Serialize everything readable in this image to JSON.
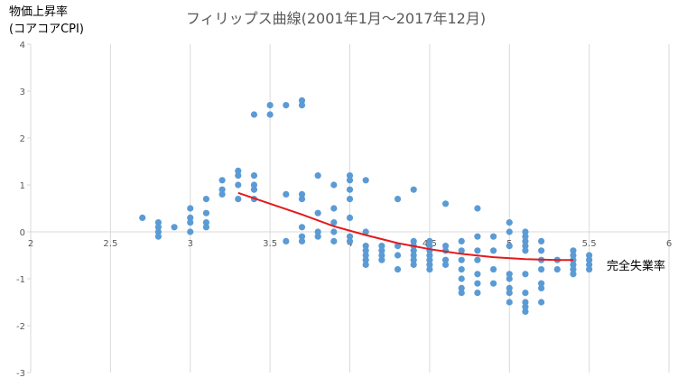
{
  "chart_data": {
    "type": "scatter",
    "title": "フィリップス曲線(2001年1月～2017年12月)",
    "xlabel": "完全失業率",
    "ylabel_line1": "物価上昇率",
    "ylabel_line2": "(コアコアCPI)",
    "xlim": [
      2,
      6
    ],
    "ylim": [
      -3,
      4
    ],
    "x_ticks": [
      "2",
      "2.5",
      "3",
      "3.5",
      "4",
      "4.5",
      "5",
      "5.5",
      "6"
    ],
    "y_ticks": [
      "4",
      "3",
      "2",
      "1",
      "0",
      "-1",
      "-2",
      "-3"
    ],
    "grid": "vertical",
    "legend": "none",
    "colors": {
      "points": "#5b9bd5",
      "trend": "#e31a1c",
      "grid": "#d9d9d9",
      "text": "#595959"
    },
    "points": [
      [
        2.7,
        0.3
      ],
      [
        2.8,
        0.2
      ],
      [
        2.8,
        0.1
      ],
      [
        2.8,
        0.0
      ],
      [
        2.8,
        -0.1
      ],
      [
        2.9,
        0.1
      ],
      [
        3.0,
        0.5
      ],
      [
        3.0,
        0.3
      ],
      [
        3.0,
        0.2
      ],
      [
        3.0,
        0.0
      ],
      [
        3.1,
        0.7
      ],
      [
        3.1,
        0.4
      ],
      [
        3.1,
        0.2
      ],
      [
        3.1,
        0.1
      ],
      [
        3.2,
        1.1
      ],
      [
        3.2,
        0.9
      ],
      [
        3.2,
        0.8
      ],
      [
        3.3,
        1.3
      ],
      [
        3.3,
        1.2
      ],
      [
        3.3,
        1.0
      ],
      [
        3.3,
        0.7
      ],
      [
        3.4,
        2.5
      ],
      [
        3.4,
        1.2
      ],
      [
        3.4,
        1.0
      ],
      [
        3.4,
        0.9
      ],
      [
        3.4,
        0.7
      ],
      [
        3.5,
        2.7
      ],
      [
        3.5,
        2.5
      ],
      [
        3.6,
        2.7
      ],
      [
        3.6,
        0.8
      ],
      [
        3.6,
        -0.2
      ],
      [
        3.7,
        2.8
      ],
      [
        3.7,
        2.7
      ],
      [
        3.7,
        0.8
      ],
      [
        3.7,
        0.7
      ],
      [
        3.7,
        0.1
      ],
      [
        3.7,
        -0.1
      ],
      [
        3.7,
        -0.2
      ],
      [
        3.8,
        1.2
      ],
      [
        3.8,
        0.4
      ],
      [
        3.8,
        0.0
      ],
      [
        3.8,
        -0.1
      ],
      [
        3.9,
        1.0
      ],
      [
        3.9,
        0.5
      ],
      [
        3.9,
        0.2
      ],
      [
        3.9,
        0.0
      ],
      [
        3.9,
        -0.2
      ],
      [
        4.0,
        1.2
      ],
      [
        4.0,
        1.1
      ],
      [
        4.0,
        0.9
      ],
      [
        4.0,
        0.7
      ],
      [
        4.0,
        0.3
      ],
      [
        4.0,
        -0.1
      ],
      [
        4.0,
        -0.2
      ],
      [
        4.1,
        1.1
      ],
      [
        4.1,
        0.0
      ],
      [
        4.1,
        -0.3
      ],
      [
        4.1,
        -0.4
      ],
      [
        4.1,
        -0.5
      ],
      [
        4.1,
        -0.6
      ],
      [
        4.1,
        -0.7
      ],
      [
        4.2,
        -0.3
      ],
      [
        4.2,
        -0.4
      ],
      [
        4.2,
        -0.5
      ],
      [
        4.2,
        -0.6
      ],
      [
        4.3,
        0.7
      ],
      [
        4.3,
        -0.3
      ],
      [
        4.3,
        -0.5
      ],
      [
        4.3,
        -0.8
      ],
      [
        4.4,
        0.9
      ],
      [
        4.4,
        -0.2
      ],
      [
        4.4,
        -0.3
      ],
      [
        4.4,
        -0.4
      ],
      [
        4.4,
        -0.5
      ],
      [
        4.4,
        -0.6
      ],
      [
        4.4,
        -0.7
      ],
      [
        4.5,
        -0.2
      ],
      [
        4.5,
        -0.3
      ],
      [
        4.5,
        -0.4
      ],
      [
        4.5,
        -0.5
      ],
      [
        4.5,
        -0.6
      ],
      [
        4.5,
        -0.7
      ],
      [
        4.5,
        -0.8
      ],
      [
        4.6,
        0.6
      ],
      [
        4.6,
        -0.3
      ],
      [
        4.6,
        -0.4
      ],
      [
        4.6,
        -0.6
      ],
      [
        4.6,
        -0.7
      ],
      [
        4.7,
        -0.2
      ],
      [
        4.7,
        -0.4
      ],
      [
        4.7,
        -0.6
      ],
      [
        4.7,
        -0.8
      ],
      [
        4.7,
        -1.0
      ],
      [
        4.7,
        -1.2
      ],
      [
        4.7,
        -1.3
      ],
      [
        4.8,
        0.5
      ],
      [
        4.8,
        -0.1
      ],
      [
        4.8,
        -0.4
      ],
      [
        4.8,
        -0.6
      ],
      [
        4.8,
        -0.9
      ],
      [
        4.8,
        -1.1
      ],
      [
        4.8,
        -1.3
      ],
      [
        4.9,
        -0.1
      ],
      [
        4.9,
        -0.4
      ],
      [
        4.9,
        -0.8
      ],
      [
        4.9,
        -1.1
      ],
      [
        5.0,
        0.2
      ],
      [
        5.0,
        0.0
      ],
      [
        5.0,
        -0.3
      ],
      [
        5.0,
        -0.9
      ],
      [
        5.0,
        -1.0
      ],
      [
        5.0,
        -1.2
      ],
      [
        5.0,
        -1.3
      ],
      [
        5.0,
        -1.5
      ],
      [
        5.1,
        0.0
      ],
      [
        5.1,
        -0.1
      ],
      [
        5.1,
        -0.2
      ],
      [
        5.1,
        -0.3
      ],
      [
        5.1,
        -0.4
      ],
      [
        5.1,
        -0.9
      ],
      [
        5.1,
        -1.3
      ],
      [
        5.1,
        -1.5
      ],
      [
        5.1,
        -1.6
      ],
      [
        5.1,
        -1.7
      ],
      [
        5.2,
        -0.2
      ],
      [
        5.2,
        -0.4
      ],
      [
        5.2,
        -0.6
      ],
      [
        5.2,
        -0.8
      ],
      [
        5.2,
        -1.1
      ],
      [
        5.2,
        -1.2
      ],
      [
        5.2,
        -1.5
      ],
      [
        5.3,
        -0.6
      ],
      [
        5.3,
        -0.8
      ],
      [
        5.4,
        -0.4
      ],
      [
        5.4,
        -0.5
      ],
      [
        5.4,
        -0.6
      ],
      [
        5.4,
        -0.7
      ],
      [
        5.4,
        -0.8
      ],
      [
        5.4,
        -0.9
      ],
      [
        5.5,
        -0.5
      ],
      [
        5.5,
        -0.6
      ],
      [
        5.5,
        -0.7
      ],
      [
        5.5,
        -0.8
      ]
    ],
    "trendline": [
      [
        3.3,
        0.83
      ],
      [
        3.5,
        0.6
      ],
      [
        3.7,
        0.37
      ],
      [
        3.9,
        0.12
      ],
      [
        4.1,
        -0.07
      ],
      [
        4.3,
        -0.24
      ],
      [
        4.5,
        -0.37
      ],
      [
        4.7,
        -0.47
      ],
      [
        4.9,
        -0.54
      ],
      [
        5.1,
        -0.58
      ],
      [
        5.3,
        -0.6
      ],
      [
        5.4,
        -0.6
      ]
    ]
  }
}
